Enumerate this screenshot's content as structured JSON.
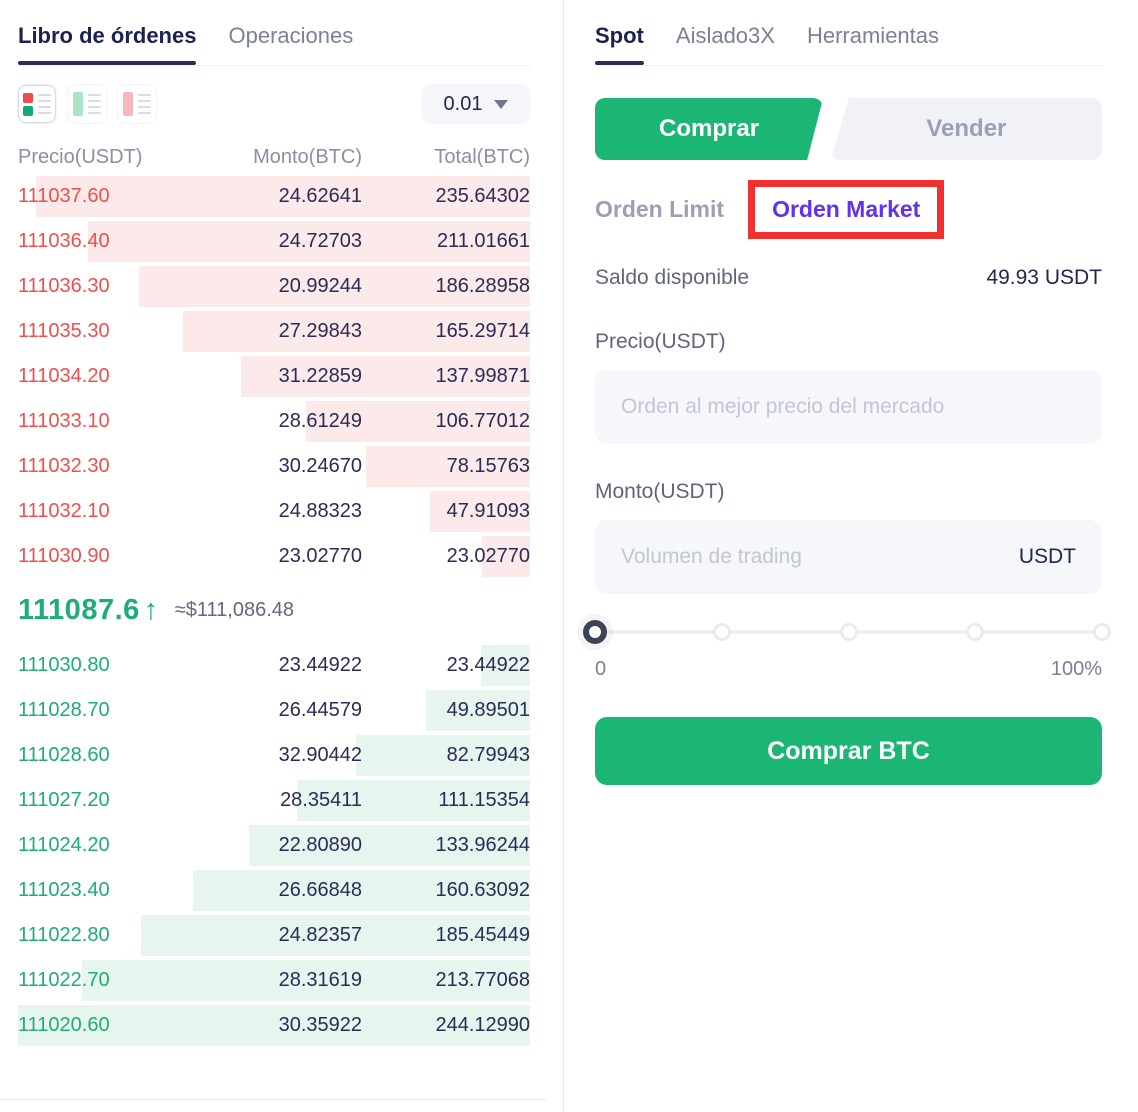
{
  "orderbook": {
    "tabs": [
      {
        "label": "Libro de órdenes",
        "active": true
      },
      {
        "label": "Operaciones",
        "active": false
      }
    ],
    "view_icons": [
      "both-sides-view",
      "bids-only-view",
      "asks-only-view"
    ],
    "precision_dropdown": {
      "value": "0.01"
    },
    "columns": {
      "price": "Precio(USDT)",
      "amount": "Monto(BTC)",
      "total": "Total(BTC)"
    },
    "asks": [
      {
        "price": "111037.60",
        "amount": "24.62641",
        "total": "235.64302"
      },
      {
        "price": "111036.40",
        "amount": "24.72703",
        "total": "211.01661"
      },
      {
        "price": "111036.30",
        "amount": "20.99244",
        "total": "186.28958"
      },
      {
        "price": "111035.30",
        "amount": "27.29843",
        "total": "165.29714"
      },
      {
        "price": "111034.20",
        "amount": "31.22859",
        "total": "137.99871"
      },
      {
        "price": "111033.10",
        "amount": "28.61249",
        "total": "106.77012"
      },
      {
        "price": "111032.30",
        "amount": "30.24670",
        "total": "78.15763"
      },
      {
        "price": "111032.10",
        "amount": "24.88323",
        "total": "47.91093"
      },
      {
        "price": "111030.90",
        "amount": "23.02770",
        "total": "23.02770"
      }
    ],
    "last_price": {
      "value": "111087.6",
      "direction_arrow": "↑",
      "approx_usd": "≈$111,086.48"
    },
    "bids": [
      {
        "price": "111030.80",
        "amount": "23.44922",
        "total": "23.44922"
      },
      {
        "price": "111028.70",
        "amount": "26.44579",
        "total": "49.89501"
      },
      {
        "price": "111028.60",
        "amount": "32.90442",
        "total": "82.79943"
      },
      {
        "price": "111027.20",
        "amount": "28.35411",
        "total": "111.15354"
      },
      {
        "price": "111024.20",
        "amount": "22.80890",
        "total": "133.96244"
      },
      {
        "price": "111023.40",
        "amount": "26.66848",
        "total": "160.63092"
      },
      {
        "price": "111022.80",
        "amount": "24.82357",
        "total": "185.45449"
      },
      {
        "price": "111022.70",
        "amount": "28.31619",
        "total": "213.77068"
      },
      {
        "price": "111020.60",
        "amount": "30.35922",
        "total": "244.12990"
      }
    ]
  },
  "trade_panel": {
    "tabs": [
      {
        "label": "Spot",
        "active": true
      },
      {
        "label": "Aislado3X",
        "active": false
      },
      {
        "label": "Herramientas",
        "active": false
      }
    ],
    "side_toggle": {
      "buy_label": "Comprar",
      "sell_label": "Vender"
    },
    "order_types": [
      {
        "label": "Orden Limit",
        "selected": false,
        "annotated": false
      },
      {
        "label": "Orden Market",
        "selected": true,
        "annotated": true
      }
    ],
    "balance": {
      "label": "Saldo disponible",
      "value": "49.93 USDT"
    },
    "price_field": {
      "label": "Precio(USDT)",
      "placeholder": "Orden al mejor precio del mercado",
      "value": ""
    },
    "amount_field": {
      "label": "Monto(USDT)",
      "placeholder": "Volumen de trading",
      "unit": "USDT",
      "value": ""
    },
    "slider": {
      "stops": 5,
      "value_percent": 0,
      "min_label": "0",
      "max_label": "100%"
    },
    "submit_label": "Comprar BTC"
  },
  "colors": {
    "buy_green": "#1BB673",
    "bid_text_green": "#1CAE75",
    "ask_text_red": "#F04E4E",
    "ask_depth_bar": "#FCE9E9",
    "bid_depth_bar": "#E6F5EE",
    "selected_order_type_purple": "#6231EF",
    "annotation_red": "#F23030",
    "dark_navy_text": "#23274B"
  }
}
